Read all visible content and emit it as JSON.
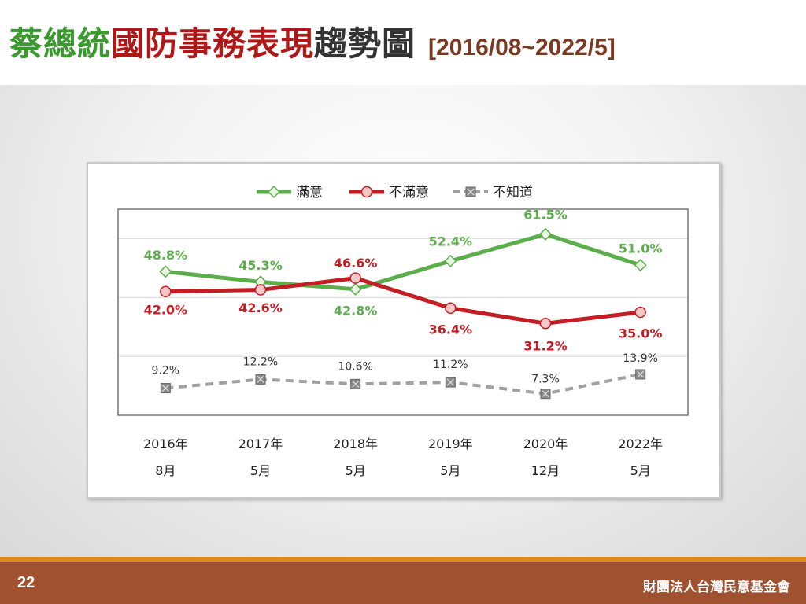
{
  "title": {
    "part1": "蔡總統",
    "part2": "國防事務表現",
    "part3": "趨勢圖",
    "range": "[2016/08~2022/5]"
  },
  "footer": {
    "page_number": "22",
    "organization": "財團法人台灣民意基金會"
  },
  "colors": {
    "satisfied": "#5cae4c",
    "dissatisfied": "#c41e24",
    "unknown": "#a0a0a0",
    "footer": "#a05230",
    "footer_border": "#e08a1e"
  },
  "chart_data": {
    "type": "line",
    "categories": [
      [
        "2016年",
        "8月"
      ],
      [
        "2017年",
        "5月"
      ],
      [
        "2018年",
        "5月"
      ],
      [
        "2019年",
        "5月"
      ],
      [
        "2020年",
        "12月"
      ],
      [
        "2022年",
        "5月"
      ]
    ],
    "ylim": [
      0,
      70
    ],
    "grid": "horizontal",
    "legend_position": "top",
    "series": [
      {
        "name": "滿意",
        "values": [
          48.8,
          45.3,
          42.8,
          52.4,
          61.5,
          51.0
        ],
        "labels": [
          "48.8%",
          "45.3%",
          "42.8%",
          "52.4%",
          "61.5%",
          "51.0%"
        ],
        "style": "solid",
        "marker": "diamond"
      },
      {
        "name": "不滿意",
        "values": [
          42.0,
          42.6,
          46.6,
          36.4,
          31.2,
          35.0
        ],
        "labels": [
          "42.0%",
          "42.6%",
          "46.6%",
          "36.4%",
          "31.2%",
          "35.0%"
        ],
        "style": "solid",
        "marker": "circle"
      },
      {
        "name": "不知道",
        "values": [
          9.2,
          12.2,
          10.6,
          11.2,
          7.3,
          13.9
        ],
        "labels": [
          "9.2%",
          "12.2%",
          "10.6%",
          "11.2%",
          "7.3%",
          "13.9%"
        ],
        "style": "dashed",
        "marker": "square-x"
      }
    ]
  }
}
